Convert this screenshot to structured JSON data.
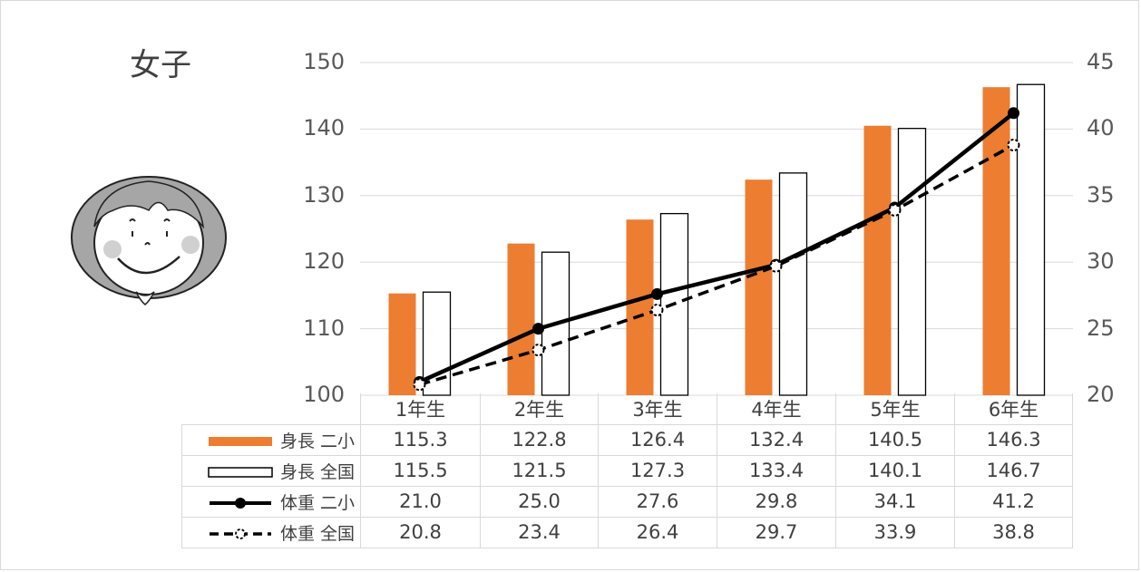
{
  "chart_data": {
    "type": "bar+line",
    "title": "女子",
    "categories": [
      "1年生",
      "2年生",
      "3年生",
      "4年生",
      "5年生",
      "6年生"
    ],
    "y_left": {
      "range": [
        100,
        150
      ],
      "ticks": [
        "100",
        "110",
        "120",
        "130",
        "140",
        "150"
      ]
    },
    "y_right": {
      "range": [
        20,
        45
      ],
      "ticks": [
        "20",
        "25",
        "30",
        "35",
        "40",
        "45"
      ]
    },
    "grid": true,
    "legend": "data-table",
    "series": [
      {
        "name": "身長 二小",
        "type": "bar",
        "axis": "left",
        "color": "#ed7d31",
        "values": [
          115.3,
          122.8,
          126.4,
          132.4,
          140.5,
          146.3
        ],
        "labels": [
          "115.3",
          "122.8",
          "126.4",
          "132.4",
          "140.5",
          "146.3"
        ]
      },
      {
        "name": "身長 全国",
        "type": "bar",
        "axis": "left",
        "color": "#ffffff",
        "values": [
          115.5,
          121.5,
          127.3,
          133.4,
          140.1,
          146.7
        ],
        "labels": [
          "115.5",
          "121.5",
          "127.3",
          "133.4",
          "140.1",
          "146.7"
        ]
      },
      {
        "name": "体重 二小",
        "type": "line",
        "axis": "right",
        "color": "#000000",
        "style": "solid",
        "values": [
          21.0,
          25.0,
          27.6,
          29.8,
          34.1,
          41.2
        ],
        "labels": [
          "21.0",
          "25.0",
          "27.6",
          "29.8",
          "34.1",
          "41.2"
        ]
      },
      {
        "name": "体重 全国",
        "type": "line",
        "axis": "right",
        "color": "#000000",
        "style": "dashed",
        "values": [
          20.8,
          23.4,
          26.4,
          29.7,
          33.9,
          38.8
        ],
        "labels": [
          "20.8",
          "23.4",
          "26.4",
          "29.7",
          "33.9",
          "38.8"
        ]
      }
    ]
  }
}
